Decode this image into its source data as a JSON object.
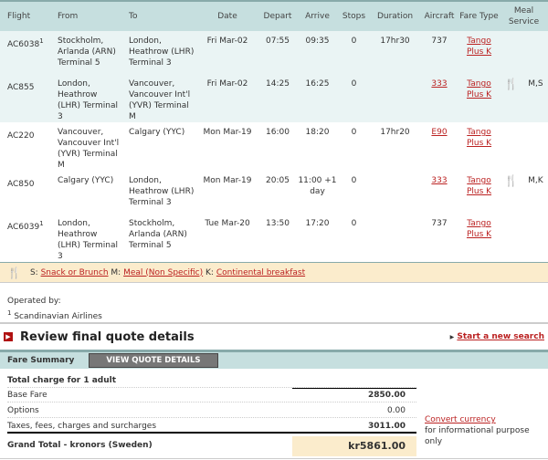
{
  "columns": [
    "Flight",
    "From",
    "To",
    "Date",
    "Depart",
    "Arrive",
    "Stops",
    "Duration",
    "Aircraft",
    "Fare Type",
    "Meal Service"
  ],
  "flights": [
    {
      "flight": "AC6038",
      "sup": "1",
      "from": "Stockholm, Arlanda (ARN) Terminal 5",
      "to": "London, Heathrow (LHR) Terminal 3",
      "date": "Fri Mar-02",
      "depart": "07:55",
      "arrive": "09:35",
      "stops": "0",
      "duration": "17hr30",
      "aircraft": "737",
      "aircraft_link": false,
      "fare": "Tango Plus K",
      "meal": ""
    },
    {
      "flight": "AC855",
      "sup": "",
      "from": "London, Heathrow (LHR) Terminal 3",
      "to": "Vancouver, Vancouver Int'l (YVR) Terminal M",
      "date": "Fri Mar-02",
      "depart": "14:25",
      "arrive": "16:25",
      "stops": "0",
      "duration": "",
      "aircraft": "333",
      "aircraft_link": true,
      "fare": "Tango Plus K",
      "meal": "M,S"
    },
    {
      "flight": "AC220",
      "sup": "",
      "from": "Vancouver, Vancouver Int'l (YVR) Terminal M",
      "to": "Calgary (YYC)",
      "date": "Mon Mar-19",
      "depart": "16:00",
      "arrive": "18:20",
      "stops": "0",
      "duration": "17hr20",
      "aircraft": "E90",
      "aircraft_link": true,
      "fare": "Tango Plus K",
      "meal": ""
    },
    {
      "flight": "AC850",
      "sup": "",
      "from": "Calgary (YYC)",
      "to": "London, Heathrow (LHR) Terminal 3",
      "date": "Mon Mar-19",
      "depart": "20:05",
      "arrive": "11:00 +1 day",
      "stops": "0",
      "duration": "",
      "aircraft": "333",
      "aircraft_link": true,
      "fare": "Tango Plus K",
      "meal": "M,K"
    },
    {
      "flight": "AC6039",
      "sup": "1",
      "from": "London, Heathrow (LHR) Terminal 3",
      "to": "Stockholm, Arlanda (ARN) Terminal 5",
      "date": "Tue Mar-20",
      "depart": "13:50",
      "arrive": "17:20",
      "stops": "0",
      "duration": "",
      "aircraft": "737",
      "aircraft_link": false,
      "fare": "Tango Plus K",
      "meal": ""
    }
  ],
  "legend": {
    "s_code": "S:",
    "s": "Snack or Brunch",
    "m_code": "M:",
    "m": "Meal (Non Specific)",
    "k_code": "K:",
    "k": "Continental breakfast"
  },
  "operated": {
    "label": "Operated by:",
    "sup": "1",
    "airline": "Scandinavian Airlines"
  },
  "review": {
    "title": "Review final quote details",
    "new_search": "Start a new search"
  },
  "fare_summary": {
    "label": "Fare Summary",
    "button": "VIEW QUOTE DETAILS"
  },
  "totals": {
    "heading": "Total charge for 1 adult",
    "base_label": "Base Fare",
    "base": "2850.00",
    "options_label": "Options",
    "options": "0.00",
    "taxes_label": "Taxes, fees, charges and surcharges",
    "taxes": "3011.00",
    "grand_label": "Grand Total - kronors (Sweden)",
    "grand": "kr5861.00",
    "convert": "Convert currency",
    "convert_note": "for informational purpose only"
  },
  "colors": {
    "header": "#c6dfdf",
    "link": "#bb2222",
    "highlight": "#fbeccc"
  }
}
